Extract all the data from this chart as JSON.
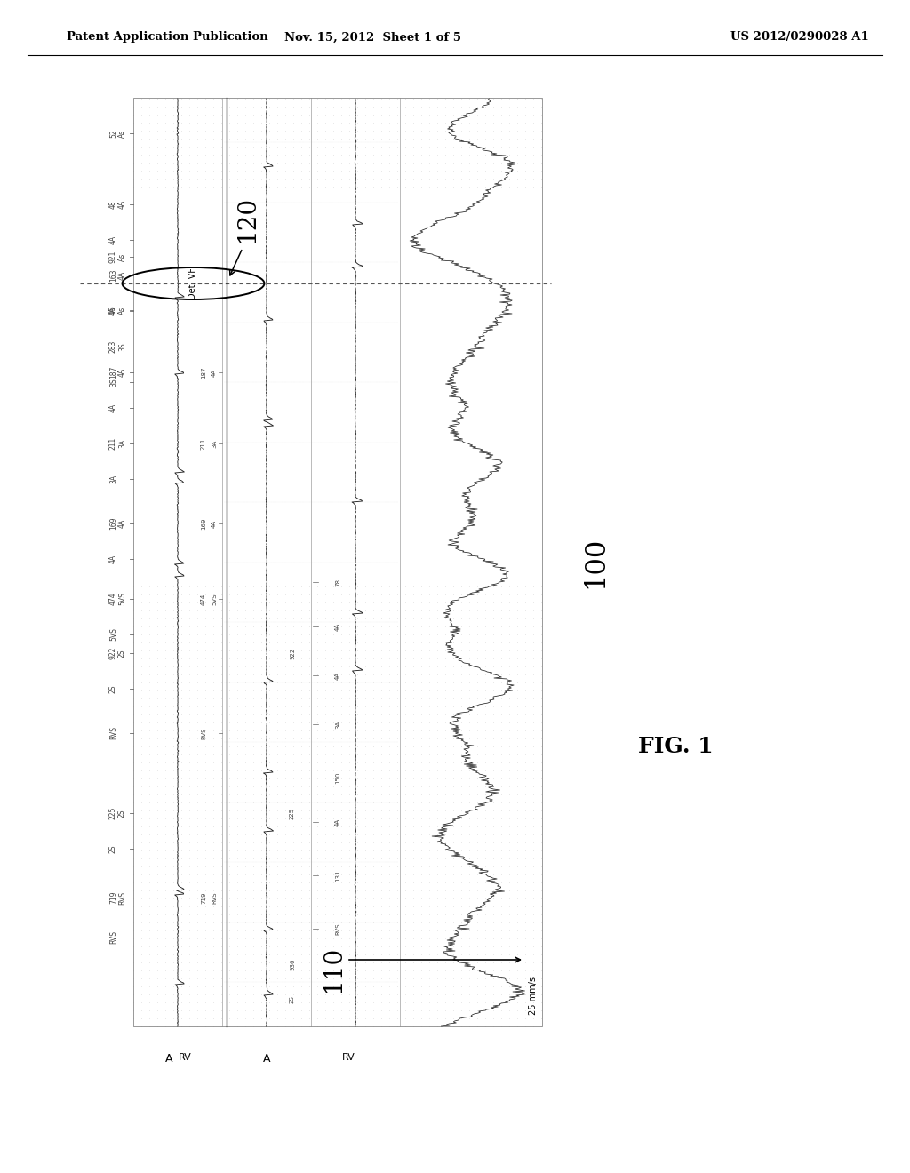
{
  "header_left": "Patent Application Publication",
  "header_center": "Nov. 15, 2012  Sheet 1 of 5",
  "header_right": "US 2012/0290028 A1",
  "figure_label": "FIG. 1",
  "label_100": "100",
  "label_110": "110",
  "label_120": "120",
  "label_det_vf": "Det. VF",
  "speed_label": "25 mm/s",
  "background_color": "#ffffff",
  "grid_dot_color": "#c8c8c8",
  "signal_color": "#222222",
  "dashed_line_color": "#555555",
  "header_line_color": "#000000",
  "border_color": "#888888",
  "annotation_color": "#444444",
  "tick_color": "#666666"
}
